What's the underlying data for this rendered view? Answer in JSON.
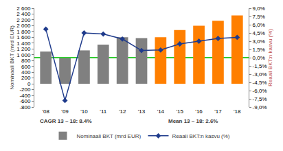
{
  "chart_data": {
    "type": "bar",
    "categories": [
      "'08",
      "'09",
      "'10",
      "'11",
      "'12",
      "'13",
      "'14",
      "'15",
      "'16",
      "'17",
      "'18"
    ],
    "series": [
      {
        "name": "Nominaali BKT (mrd EUR)",
        "type": "bar",
        "colors": [
          "#808080",
          "#808080",
          "#808080",
          "#808080",
          "#808080",
          "#808080",
          "#ff7f00",
          "#ff7f00",
          "#ff7f00",
          "#ff7f00",
          "#ff7f00"
        ],
        "values": [
          1110,
          880,
          1150,
          1350,
          1600,
          1570,
          1600,
          1850,
          2000,
          2170,
          2350
        ]
      },
      {
        "name": "Reaali BKT:n kasvu (%)",
        "type": "line",
        "axis": "y2",
        "color": "#1f3b8c",
        "marker": "diamond",
        "values": [
          5.2,
          -7.8,
          4.5,
          4.3,
          3.4,
          1.3,
          1.4,
          2.5,
          3.0,
          3.5,
          3.7
        ]
      }
    ],
    "y_label": "Nominaali BKT (mrd EUR)",
    "y2_label": "Reaali BKT:n kasvu (%)",
    "ylim": [
      -800,
      2600
    ],
    "yticks": [
      -800,
      -600,
      -400,
      -200,
      0,
      200,
      400,
      600,
      800,
      {
        "value": 1000,
        "label": "1 000"
      },
      {
        "value": 1200,
        "label": "1 200"
      },
      {
        "value": 1400,
        "label": "1 400"
      },
      {
        "value": 1600,
        "label": "1 600"
      },
      {
        "value": 1800,
        "label": "1 800"
      },
      {
        "value": 2000,
        "label": "2 000"
      },
      {
        "value": 2200,
        "label": "2 200"
      },
      {
        "value": 2400,
        "label": "2 400"
      },
      {
        "value": 2600,
        "label": "2 600"
      }
    ],
    "y2lim": [
      -9,
      9
    ],
    "y2ticks": [
      {
        "value": -9,
        "label": "-9,0%"
      },
      {
        "value": -7.5,
        "label": "-7,5%"
      },
      {
        "value": -6,
        "label": "-6,0%"
      },
      {
        "value": -4.5,
        "label": "-4,5%"
      },
      {
        "value": -3,
        "label": "-3,0%"
      },
      {
        "value": -1.5,
        "label": "-1,5%"
      },
      {
        "value": 0,
        "label": "0,0%"
      },
      {
        "value": 1.5,
        "label": "1,5%"
      },
      {
        "value": 3,
        "label": "3,0%"
      },
      {
        "value": 4.5,
        "label": "4,5%"
      },
      {
        "value": 6,
        "label": "6,0%"
      },
      {
        "value": 7.5,
        "label": "7,5%"
      },
      {
        "value": 9,
        "label": "9,0%"
      }
    ],
    "annotations": [
      "CAGR 13 – 18: 8.4%",
      "Mean 13 – 18: 2.6%"
    ],
    "legend": "bottom",
    "grid": false
  }
}
